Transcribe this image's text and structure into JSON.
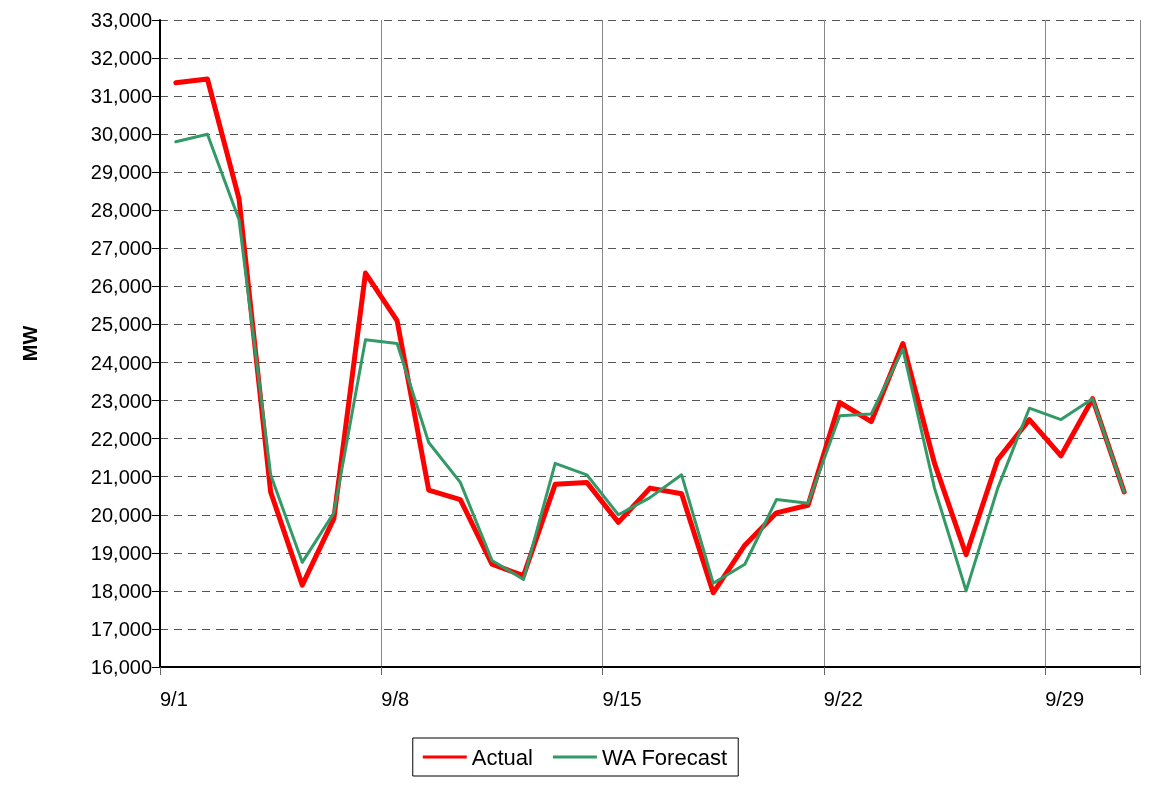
{
  "chart_data": {
    "type": "line",
    "ylabel": "MW",
    "categories": [
      "9/1",
      null,
      null,
      null,
      null,
      null,
      null,
      "9/8",
      null,
      null,
      null,
      null,
      null,
      null,
      "9/15",
      null,
      null,
      null,
      null,
      null,
      null,
      "9/22",
      null,
      null,
      null,
      null,
      null,
      null,
      "9/29",
      null,
      null
    ],
    "series": [
      {
        "name": "Actual",
        "color": "#ff0000",
        "values": [
          31350,
          31450,
          28300,
          20600,
          18150,
          19900,
          26350,
          25100,
          20650,
          20400,
          18700,
          18400,
          20800,
          20850,
          19800,
          20700,
          20550,
          17950,
          19200,
          20050,
          20250,
          22950,
          22450,
          24500,
          21350,
          18950,
          21450,
          22500,
          21550,
          23050,
          20600
        ]
      },
      {
        "name": "WA Forecast",
        "color": "#339966",
        "values": [
          29800,
          30000,
          27750,
          21050,
          18750,
          20050,
          24600,
          24500,
          21900,
          20850,
          18800,
          18300,
          21350,
          21050,
          20000,
          20450,
          21050,
          18200,
          18700,
          20400,
          20300,
          22600,
          22650,
          24350,
          20700,
          18000,
          20700,
          22800,
          22500,
          23050,
          20600
        ]
      }
    ],
    "ylim": [
      16000,
      33000
    ],
    "yticks": [
      {
        "value": 16000,
        "label": "16,000"
      },
      {
        "value": 17000,
        "label": "17,000"
      },
      {
        "value": 18000,
        "label": "18,000"
      },
      {
        "value": 19000,
        "label": "19,000"
      },
      {
        "value": 20000,
        "label": "20,000"
      },
      {
        "value": 21000,
        "label": "21,000"
      },
      {
        "value": 22000,
        "label": "22,000"
      },
      {
        "value": 23000,
        "label": "23,000"
      },
      {
        "value": 24000,
        "label": "24,000"
      },
      {
        "value": 25000,
        "label": "25,000"
      },
      {
        "value": 26000,
        "label": "26,000"
      },
      {
        "value": 27000,
        "label": "27,000"
      },
      {
        "value": 28000,
        "label": "28,000"
      },
      {
        "value": 29000,
        "label": "29,000"
      },
      {
        "value": 30000,
        "label": "30,000"
      },
      {
        "value": 31000,
        "label": "31,000"
      },
      {
        "value": 32000,
        "label": "32,000"
      },
      {
        "value": 33000,
        "label": "33,000"
      }
    ],
    "grid": true,
    "legend": "bottom",
    "marker": "none",
    "line_style": "solid"
  }
}
